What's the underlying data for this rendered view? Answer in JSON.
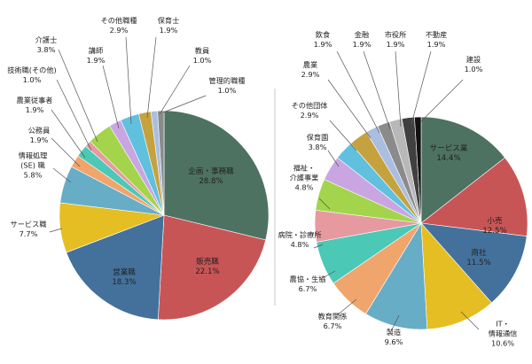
{
  "chart_data": [
    {
      "type": "pie",
      "slices": [
        {
          "name": "企画・事務職",
          "value": 28.8,
          "label": "28.8%",
          "color": "#4e7262"
        },
        {
          "name": "販売職",
          "value": 22.1,
          "label": "22.1%",
          "color": "#c85556"
        },
        {
          "name": "営業職",
          "value": 18.3,
          "label": "18.3%",
          "color": "#44719c"
        },
        {
          "name": "サービス職",
          "value": 7.7,
          "label": "7.7%",
          "color": "#e4be23"
        },
        {
          "name": "情報処理 (SE) 職",
          "value": 5.8,
          "label": "5.8%",
          "color": "#68adc6"
        },
        {
          "name": "公務員",
          "value": 1.9,
          "label": "1.9%",
          "color": "#f0a56c"
        },
        {
          "name": "農業従事者",
          "value": 1.9,
          "label": "1.9%",
          "color": "#4cc8b6"
        },
        {
          "name": "技術職(その他)",
          "value": 1.0,
          "label": "1.0%",
          "color": "#e69aa0"
        },
        {
          "name": "介護士",
          "value": 3.8,
          "label": "3.8%",
          "color": "#a4d44c"
        },
        {
          "name": "講師",
          "value": 1.9,
          "label": "1.9%",
          "color": "#c9a6e2"
        },
        {
          "name": "その他職種",
          "value": 2.9,
          "label": "2.9%",
          "color": "#60c0de"
        },
        {
          "name": "保育士",
          "value": 1.9,
          "label": "1.9%",
          "color": "#c6a23e"
        },
        {
          "name": "教員",
          "value": 1.0,
          "label": "1.0%",
          "color": "#a9bee0"
        },
        {
          "name": "管理的職種",
          "value": 1.0,
          "label": "1.0%",
          "color": "#8b8b8b"
        }
      ]
    },
    {
      "type": "pie",
      "slices": [
        {
          "name": "サービス業",
          "value": 14.4,
          "label": "14.4%",
          "color": "#4e7262"
        },
        {
          "name": "小売",
          "value": 12.5,
          "label": "12.5%",
          "color": "#c85556"
        },
        {
          "name": "商社",
          "value": 11.5,
          "label": "11.5%",
          "color": "#44719c"
        },
        {
          "name": "IT・情報通信",
          "value": 10.6,
          "label": "10.6%",
          "color": "#e4be23"
        },
        {
          "name": "製造",
          "value": 9.6,
          "label": "9.6%",
          "color": "#68adc6"
        },
        {
          "name": "教育関係",
          "value": 6.7,
          "label": "6.7%",
          "color": "#f0a56c"
        },
        {
          "name": "農協・生協",
          "value": 6.7,
          "label": "6.7%",
          "color": "#4cc8b6"
        },
        {
          "name": "病院・診療所",
          "value": 4.8,
          "label": "4.8%",
          "color": "#e69aa0"
        },
        {
          "name": "福祉・介護事業",
          "value": 4.8,
          "label": "4.8%",
          "color": "#a4d44c"
        },
        {
          "name": "保育園",
          "value": 3.8,
          "label": "3.8%",
          "color": "#c9a6e2"
        },
        {
          "name": "その他団体",
          "value": 2.9,
          "label": "2.9%",
          "color": "#60c0de"
        },
        {
          "name": "農業",
          "value": 2.9,
          "label": "2.9%",
          "color": "#c6a23e"
        },
        {
          "name": "飲食",
          "value": 1.9,
          "label": "1.9%",
          "color": "#a9bee0"
        },
        {
          "name": "金融",
          "value": 1.9,
          "label": "1.9%",
          "color": "#8b8b8b"
        },
        {
          "name": "市役所",
          "value": 1.9,
          "label": "1.9%",
          "color": "#b8b8b8"
        },
        {
          "name": "不動産",
          "value": 1.9,
          "label": "1.9%",
          "color": "#404040"
        },
        {
          "name": "建設",
          "value": 1.0,
          "label": "1.0%",
          "color": "#111111"
        }
      ]
    }
  ]
}
